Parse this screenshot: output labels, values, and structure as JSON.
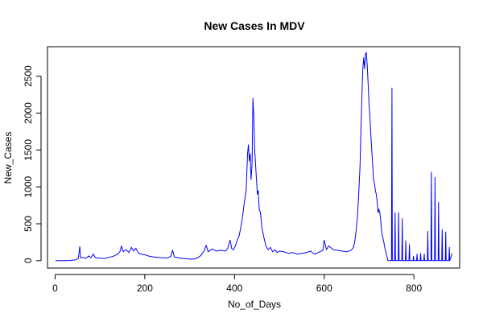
{
  "chart_data": {
    "type": "line",
    "title": "New Cases In MDV",
    "xlabel": "No_of_Days",
    "ylabel": "New_Cases",
    "xlim": [
      -17,
      902
    ],
    "ylim": [
      -100,
      2900
    ],
    "x_ticks": [
      0,
      200,
      400,
      600,
      800
    ],
    "y_ticks": [
      0,
      500,
      1000,
      1500,
      2000,
      2500
    ],
    "grid": false,
    "legend": "none",
    "series": [
      {
        "color": "#0000ff",
        "points": [
          [
            1,
            0
          ],
          [
            30,
            0
          ],
          [
            45,
            10
          ],
          [
            52,
            30
          ],
          [
            55,
            190
          ],
          [
            57,
            40
          ],
          [
            62,
            45
          ],
          [
            68,
            30
          ],
          [
            75,
            65
          ],
          [
            80,
            40
          ],
          [
            85,
            90
          ],
          [
            90,
            40
          ],
          [
            100,
            35
          ],
          [
            110,
            30
          ],
          [
            120,
            45
          ],
          [
            130,
            60
          ],
          [
            140,
            90
          ],
          [
            145,
            130
          ],
          [
            148,
            200
          ],
          [
            152,
            120
          ],
          [
            158,
            150
          ],
          [
            165,
            110
          ],
          [
            170,
            180
          ],
          [
            175,
            130
          ],
          [
            180,
            170
          ],
          [
            185,
            110
          ],
          [
            190,
            90
          ],
          [
            200,
            80
          ],
          [
            210,
            60
          ],
          [
            220,
            50
          ],
          [
            230,
            45
          ],
          [
            240,
            40
          ],
          [
            250,
            35
          ],
          [
            258,
            60
          ],
          [
            262,
            140
          ],
          [
            266,
            50
          ],
          [
            275,
            40
          ],
          [
            285,
            30
          ],
          [
            295,
            25
          ],
          [
            305,
            20
          ],
          [
            315,
            30
          ],
          [
            325,
            70
          ],
          [
            333,
            140
          ],
          [
            337,
            210
          ],
          [
            341,
            120
          ],
          [
            350,
            160
          ],
          [
            360,
            130
          ],
          [
            370,
            140
          ],
          [
            380,
            130
          ],
          [
            385,
            170
          ],
          [
            390,
            280
          ],
          [
            394,
            160
          ],
          [
            398,
            150
          ],
          [
            402,
            200
          ],
          [
            406,
            280
          ],
          [
            410,
            330
          ],
          [
            414,
            450
          ],
          [
            418,
            600
          ],
          [
            422,
            800
          ],
          [
            426,
            950
          ],
          [
            429,
            1450
          ],
          [
            431,
            1570
          ],
          [
            433,
            1350
          ],
          [
            435,
            1450
          ],
          [
            437,
            1100
          ],
          [
            439,
            1300
          ],
          [
            441,
            2200
          ],
          [
            443,
            1950
          ],
          [
            445,
            1500
          ],
          [
            447,
            1300
          ],
          [
            449,
            1100
          ],
          [
            451,
            900
          ],
          [
            453,
            950
          ],
          [
            455,
            700
          ],
          [
            458,
            650
          ],
          [
            461,
            450
          ],
          [
            465,
            330
          ],
          [
            470,
            200
          ],
          [
            475,
            150
          ],
          [
            480,
            180
          ],
          [
            485,
            120
          ],
          [
            490,
            150
          ],
          [
            495,
            110
          ],
          [
            500,
            130
          ],
          [
            510,
            120
          ],
          [
            520,
            100
          ],
          [
            530,
            110
          ],
          [
            540,
            90
          ],
          [
            550,
            100
          ],
          [
            560,
            110
          ],
          [
            570,
            130
          ],
          [
            575,
            100
          ],
          [
            580,
            90
          ],
          [
            590,
            120
          ],
          [
            597,
            140
          ],
          [
            600,
            280
          ],
          [
            605,
            150
          ],
          [
            610,
            200
          ],
          [
            620,
            150
          ],
          [
            630,
            140
          ],
          [
            640,
            130
          ],
          [
            650,
            120
          ],
          [
            660,
            140
          ],
          [
            665,
            180
          ],
          [
            668,
            250
          ],
          [
            671,
            400
          ],
          [
            674,
            600
          ],
          [
            677,
            900
          ],
          [
            680,
            1300
          ],
          [
            682,
            1800
          ],
          [
            684,
            2200
          ],
          [
            686,
            2600
          ],
          [
            688,
            2750
          ],
          [
            690,
            2600
          ],
          [
            692,
            2800
          ],
          [
            694,
            2820
          ],
          [
            696,
            2650
          ],
          [
            698,
            2400
          ],
          [
            700,
            2100
          ],
          [
            702,
            1950
          ],
          [
            704,
            1700
          ],
          [
            706,
            1500
          ],
          [
            708,
            1300
          ],
          [
            710,
            1100
          ],
          [
            712,
            1050
          ],
          [
            714,
            950
          ],
          [
            716,
            900
          ],
          [
            718,
            800
          ],
          [
            720,
            650
          ],
          [
            722,
            700
          ],
          [
            724,
            650
          ],
          [
            726,
            550
          ],
          [
            728,
            400
          ],
          [
            730,
            330
          ],
          [
            733,
            250
          ],
          [
            736,
            150
          ],
          [
            739,
            80
          ],
          [
            742,
            0
          ],
          [
            748,
            0
          ],
          [
            750,
            0
          ],
          [
            751,
            2340
          ],
          [
            752,
            0
          ],
          [
            757,
            0
          ],
          [
            758,
            650
          ],
          [
            759,
            0
          ],
          [
            765,
            0
          ],
          [
            766,
            650
          ],
          [
            767,
            0
          ],
          [
            773,
            0
          ],
          [
            774,
            570
          ],
          [
            775,
            0
          ],
          [
            781,
            0
          ],
          [
            782,
            270
          ],
          [
            783,
            0
          ],
          [
            789,
            0
          ],
          [
            790,
            220
          ],
          [
            791,
            0
          ],
          [
            798,
            0
          ],
          [
            799,
            60
          ],
          [
            800,
            0
          ],
          [
            806,
            0
          ],
          [
            807,
            90
          ],
          [
            808,
            0
          ],
          [
            814,
            0
          ],
          [
            815,
            100
          ],
          [
            816,
            0
          ],
          [
            822,
            0
          ],
          [
            823,
            90
          ],
          [
            824,
            0
          ],
          [
            830,
            0
          ],
          [
            831,
            400
          ],
          [
            832,
            0
          ],
          [
            838,
            0
          ],
          [
            839,
            1200
          ],
          [
            840,
            0
          ],
          [
            846,
            0
          ],
          [
            847,
            1130
          ],
          [
            848,
            0
          ],
          [
            854,
            0
          ],
          [
            855,
            790
          ],
          [
            856,
            0
          ],
          [
            862,
            0
          ],
          [
            863,
            420
          ],
          [
            864,
            0
          ],
          [
            870,
            0
          ],
          [
            871,
            390
          ],
          [
            872,
            0
          ],
          [
            878,
            0
          ],
          [
            879,
            180
          ],
          [
            880,
            0
          ],
          [
            882,
            40
          ],
          [
            885,
            100
          ]
        ]
      }
    ]
  }
}
